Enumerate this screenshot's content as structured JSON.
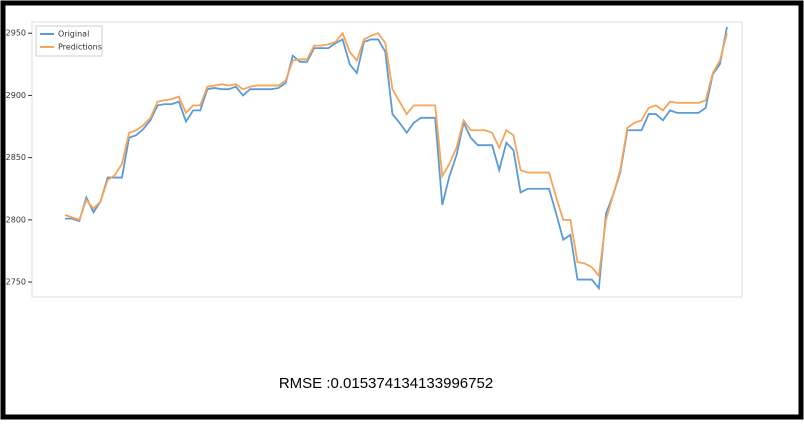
{
  "chart_data": {
    "type": "line",
    "series": [
      {
        "name": "Original",
        "color": "#5b9bd5",
        "values": [
          2801,
          2801,
          2799,
          2818,
          2806,
          2815,
          2834,
          2834,
          2834,
          2866,
          2868,
          2873,
          2880,
          2892,
          2893,
          2893,
          2895,
          2879,
          2888,
          2888,
          2905,
          2906,
          2905,
          2905,
          2907,
          2900,
          2905,
          2905,
          2905,
          2905,
          2906,
          2910,
          2932,
          2927,
          2927,
          2938,
          2938,
          2938,
          2942,
          2945,
          2925,
          2918,
          2943,
          2945,
          2945,
          2935,
          2885,
          2878,
          2870,
          2878,
          2882,
          2882,
          2882,
          2812,
          2835,
          2852,
          2878,
          2866,
          2860,
          2860,
          2860,
          2840,
          2862,
          2856,
          2822,
          2825,
          2825,
          2825,
          2825,
          2805,
          2784,
          2788,
          2752,
          2752,
          2752,
          2745,
          2805,
          2820,
          2838,
          2872,
          2872,
          2872,
          2885,
          2885,
          2880,
          2888,
          2886,
          2886,
          2886,
          2886,
          2890,
          2917,
          2925,
          2955
        ]
      },
      {
        "name": "Predictions",
        "color": "#f5a55a",
        "values": [
          2804,
          2802,
          2800,
          2816,
          2809,
          2815,
          2832,
          2836,
          2845,
          2870,
          2872,
          2876,
          2882,
          2895,
          2896,
          2897,
          2899,
          2886,
          2892,
          2892,
          2907,
          2908,
          2909,
          2908,
          2909,
          2905,
          2907,
          2908,
          2908,
          2908,
          2908,
          2912,
          2928,
          2929,
          2929,
          2940,
          2940,
          2941,
          2943,
          2950,
          2935,
          2928,
          2945,
          2948,
          2950,
          2942,
          2905,
          2895,
          2885,
          2892,
          2892,
          2892,
          2892,
          2835,
          2845,
          2858,
          2880,
          2872,
          2872,
          2872,
          2870,
          2858,
          2872,
          2868,
          2840,
          2838,
          2838,
          2838,
          2838,
          2818,
          2800,
          2800,
          2766,
          2765,
          2762,
          2755,
          2800,
          2820,
          2840,
          2874,
          2878,
          2880,
          2890,
          2892,
          2888,
          2895,
          2894,
          2894,
          2894,
          2894,
          2896,
          2918,
          2928,
          2950
        ]
      }
    ],
    "ylim": [
      2738,
      2959
    ],
    "yticks": [
      2750,
      2800,
      2850,
      2900,
      2950
    ],
    "legend": "upper left",
    "annotation": "RMSE :0.015374134133996752"
  }
}
